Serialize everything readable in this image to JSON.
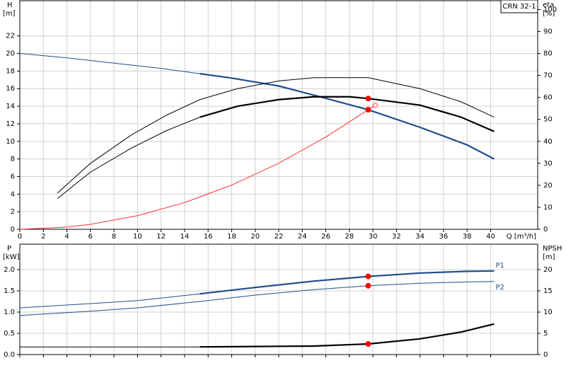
{
  "chart_data": [
    {
      "type": "line",
      "title": "CRN 32-1",
      "ylabel": [
        "H",
        "[m]"
      ],
      "y2label": [
        "eta",
        "[%]"
      ],
      "xlabel": "Q [m³/h]",
      "xlim": [
        0,
        44
      ],
      "xticks": [
        0,
        2,
        4,
        6,
        8,
        10,
        12,
        14,
        16,
        18,
        20,
        22,
        24,
        26,
        28,
        30,
        32,
        34,
        36,
        38,
        40
      ],
      "ylim": [
        0,
        26
      ],
      "yticks": [
        0,
        2,
        4,
        6,
        8,
        10,
        12,
        14,
        16,
        18,
        20,
        22
      ],
      "y2lim": [
        0,
        104
      ],
      "y2ticks": [
        0,
        10,
        20,
        30,
        40,
        50,
        60,
        70,
        80,
        90,
        100
      ],
      "grid": true,
      "show_xtick_labels": true,
      "series": [
        {
          "style": "line",
          "color": "#1f4e8c",
          "width": 1,
          "x": [
            0,
            4,
            8,
            12,
            15.3
          ],
          "values": [
            20,
            19.5,
            18.9,
            18.3,
            17.7
          ]
        },
        {
          "style": "line",
          "color": "#1f4e8c",
          "width": 2.2,
          "x": [
            15.3,
            18,
            22,
            26,
            29.6,
            34,
            38,
            40.3
          ],
          "values": [
            17.7,
            17.2,
            16.3,
            14.9,
            13.6,
            11.6,
            9.6,
            8
          ]
        },
        {
          "style": "line",
          "color": "#000000",
          "width": 1,
          "axis": "y2",
          "x": [
            3.2,
            6,
            9.5,
            12.5,
            15.3,
            18.5,
            22,
            25,
            29.6,
            34,
            37.5,
            40.3
          ],
          "values": [
            16.5,
            30,
            43,
            52,
            59,
            64,
            67.5,
            69,
            69,
            64,
            58,
            51
          ]
        },
        {
          "style": "line",
          "color": "#000000",
          "width": 1,
          "axis": "y2",
          "x": [
            3.2,
            6,
            9.5,
            12.5,
            15.3
          ],
          "values": [
            14,
            26,
            37,
            45,
            51
          ]
        },
        {
          "style": "line",
          "color": "#000000",
          "width": 2.2,
          "axis": "y2",
          "x": [
            15.3,
            18.5,
            22,
            25,
            28,
            29.6,
            34,
            37.5,
            40.3
          ],
          "values": [
            51,
            56,
            59,
            60.3,
            60.3,
            59.5,
            56.5,
            51,
            44.5
          ]
        },
        {
          "style": "line",
          "color": "#ff3030",
          "width": 1,
          "x": [
            0,
            4,
            6,
            10,
            14,
            18,
            22,
            26,
            29.6,
            30.2
          ],
          "values": [
            0,
            0.25,
            0.56,
            1.55,
            3.04,
            5.03,
            7.51,
            10.5,
            13.6,
            14.1
          ]
        },
        {
          "style": "dot",
          "color": "#ff0000",
          "x": [
            29.6
          ],
          "values": [
            13.6
          ]
        },
        {
          "style": "dot",
          "color": "#ff0000",
          "axis": "y2",
          "x": [
            29.6
          ],
          "values": [
            59.5
          ]
        },
        {
          "style": "circle",
          "color": "#ff3030",
          "x": [
            30.2
          ],
          "values": [
            14.1
          ]
        }
      ]
    },
    {
      "type": "line",
      "ylabel": [
        "P",
        "[kW]"
      ],
      "y2label": [
        "NPSH",
        "[m]"
      ],
      "xlim": [
        0,
        44
      ],
      "xticks": [
        0,
        2,
        4,
        6,
        8,
        10,
        12,
        14,
        16,
        18,
        20,
        22,
        24,
        26,
        28,
        30,
        32,
        34,
        36,
        38,
        40
      ],
      "ylim": [
        0,
        2.6
      ],
      "yticks": [
        {
          "value": 0,
          "label": "0.0"
        },
        0.5,
        {
          "value": 1,
          "label": "1.0"
        },
        1.5,
        {
          "value": 2,
          "label": "2.0"
        }
      ],
      "y2lim": [
        0,
        26
      ],
      "y2ticks": [
        0,
        5,
        10,
        15,
        20
      ],
      "grid": true,
      "show_xtick_labels": false,
      "series": [
        {
          "style": "line",
          "color": "#1f4e8c",
          "width": 1,
          "x": [
            0,
            6,
            10,
            15.3
          ],
          "values": [
            1.1,
            1.2,
            1.27,
            1.43
          ]
        },
        {
          "name": "P1",
          "style": "line",
          "color": "#1f4e8c",
          "width": 2.2,
          "x": [
            15.3,
            20,
            25,
            29.6,
            34,
            38,
            40.3
          ],
          "values": [
            1.43,
            1.58,
            1.73,
            1.84,
            1.92,
            1.96,
            1.97
          ]
        },
        {
          "name": "P2",
          "style": "line",
          "color": "#1f4e8c",
          "width": 1,
          "x": [
            0,
            6,
            10,
            15.3,
            20,
            25,
            29.6,
            34,
            38,
            40.3
          ],
          "values": [
            0.92,
            1.02,
            1.1,
            1.25,
            1.4,
            1.53,
            1.62,
            1.68,
            1.71,
            1.72
          ]
        },
        {
          "style": "line",
          "color": "#000000",
          "width": 1,
          "axis": "y2",
          "x": [
            0,
            15.3
          ],
          "values": [
            1.8,
            1.8
          ]
        },
        {
          "style": "line",
          "color": "#000000",
          "width": 2.2,
          "axis": "y2",
          "x": [
            15.3,
            20,
            25,
            29.6,
            34,
            37.5,
            40.3
          ],
          "values": [
            1.8,
            1.9,
            2,
            2.5,
            3.7,
            5.3,
            7.2
          ]
        },
        {
          "style": "dot",
          "color": "#ff0000",
          "x": [
            29.6
          ],
          "values": [
            1.84
          ]
        },
        {
          "style": "dot",
          "color": "#ff0000",
          "x": [
            29.6
          ],
          "values": [
            1.62
          ]
        },
        {
          "style": "dot",
          "color": "#ff0000",
          "axis": "y2",
          "x": [
            29.6
          ],
          "values": [
            2.5
          ]
        }
      ]
    }
  ]
}
